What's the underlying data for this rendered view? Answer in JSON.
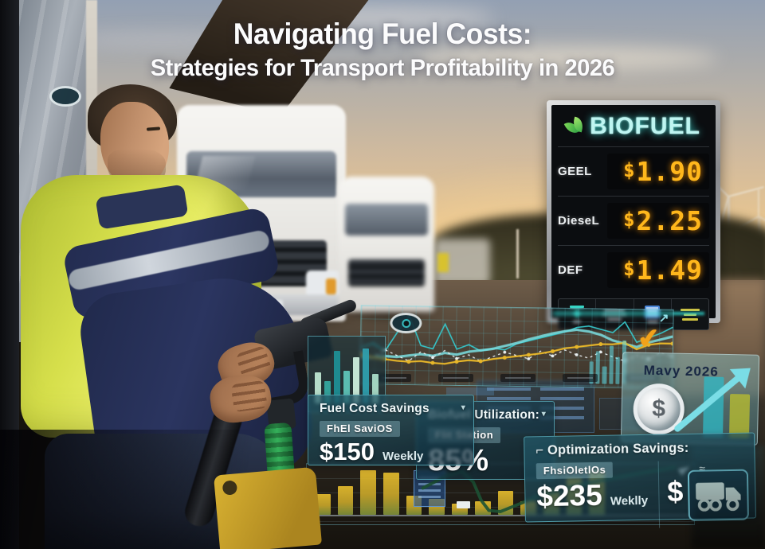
{
  "poster": {
    "title_line1": "Navigating Fuel Costs:",
    "title_line2": "Strategies for Transport Profitability in 2026"
  },
  "price_sign": {
    "brand": "BIOFUEL",
    "rows": [
      {
        "label": "GEEL",
        "price_currency": "$",
        "price": "1.90"
      },
      {
        "label": "DieseL",
        "price_currency": "$",
        "price": "2.25"
      },
      {
        "label": "DEF",
        "price_currency": "$",
        "price": "1.49"
      }
    ]
  },
  "dashboard": {
    "date_badge": "Mavy 2026",
    "coin_symbol": "$",
    "cards": [
      {
        "title": "Fuel Cost Savings",
        "chip": "FhEl SaviOS",
        "value": "$150",
        "unit": "Weekly"
      },
      {
        "title": "Biofuel Utilization:",
        "chip": "Flit Station",
        "value": "85%",
        "unit": ""
      },
      {
        "title": "Optimization Savings:",
        "chip": "FhsiOletlOs",
        "value": "$235",
        "unit": "Weklly",
        "symbol": "$"
      }
    ]
  },
  "icons": {
    "caret_down": "▾",
    "checkmark": "✔",
    "trend_arrow": "↗",
    "approx": "≈",
    "corner_mark": "⌐"
  },
  "palette": {
    "hud_border": "#55cfe0",
    "led_amber": "#ffb71c",
    "biofuel_cyan": "#bef5f1",
    "hivis_yellow": "#d6df4b",
    "navy": "#2b3560",
    "gold_bar": "#e7bd2e"
  },
  "chart_data": [
    {
      "name": "fuel-price-trend",
      "type": "line",
      "title": "",
      "xlabel": "",
      "ylabel": "",
      "x_labels": "illegible tick chips",
      "grid": true,
      "legend": false,
      "series": [
        {
          "name": "teal-spiky",
          "color": "#35c4c8",
          "width": 1.6,
          "values": [
            46,
            52,
            42,
            66,
            88,
            50,
            46,
            78,
            46,
            52,
            44,
            48,
            46,
            54,
            58,
            62,
            66,
            70,
            76,
            78,
            74,
            70,
            84,
            58,
            64,
            70,
            78
          ]
        },
        {
          "name": "teal-band",
          "color": "#7adfe2",
          "width": 3.2,
          "opacity": 0.85,
          "values": [
            34,
            34,
            36,
            35,
            37,
            39,
            37,
            41,
            39,
            43,
            45,
            47,
            51,
            55,
            60,
            64,
            68,
            71,
            73,
            71,
            67,
            60,
            56,
            52,
            58,
            62,
            66
          ]
        },
        {
          "name": "white-dotted",
          "color": "#e9eff1",
          "width": 1.3,
          "dashed": true,
          "markers": true,
          "marker_r": 1.9,
          "values": [
            40,
            34,
            44,
            37,
            30,
            42,
            35,
            44,
            34,
            39,
            31,
            37,
            43,
            39,
            35,
            45,
            39,
            47,
            41,
            37,
            45,
            39,
            34,
            41,
            37,
            45,
            41
          ]
        },
        {
          "name": "yellow",
          "color": "#e7b629",
          "width": 2.2,
          "markers": true,
          "marker_r": 2.5,
          "values": [
            37,
            34,
            32,
            30,
            29,
            30,
            28,
            27,
            30,
            32,
            31,
            34,
            36,
            38,
            40,
            42,
            45,
            49,
            51,
            53,
            55,
            55,
            57,
            49,
            55,
            57,
            57
          ]
        }
      ]
    },
    {
      "name": "mini-bars",
      "type": "bar",
      "values": [
        52,
        38,
        88,
        55,
        78,
        92,
        50
      ],
      "colors": [
        "#bfe7d2",
        "#35a8a0",
        "#1f8f96",
        "#5fc4b8",
        "#cdeedd",
        "#2f9fae",
        "#aadcc8"
      ]
    },
    {
      "name": "bottom-bars",
      "type": "bar",
      "values": [
        45,
        62,
        97,
        92,
        42,
        35,
        25,
        30,
        52,
        30,
        55,
        80,
        95
      ],
      "bar_class": "gold",
      "trend": [
        [
          30,
          40
        ],
        [
          36,
          20
        ],
        [
          40,
          12
        ],
        [
          43,
          30
        ],
        [
          45,
          60
        ],
        [
          47,
          77
        ],
        [
          50,
          79
        ],
        [
          55,
          66
        ],
        [
          60,
          52
        ],
        [
          66,
          42
        ],
        [
          74,
          30
        ],
        [
          84,
          18
        ],
        [
          95,
          6
        ]
      ],
      "trend_color": "#1d5234"
    },
    {
      "name": "cluster-bars",
      "type": "bar",
      "values": [
        42,
        62,
        34,
        72,
        52,
        84
      ],
      "colors": [
        "rgba(95,220,232,0.55)"
      ]
    },
    {
      "name": "may-bars",
      "type": "bar",
      "values": [
        86,
        62
      ],
      "colors": [
        "rgba(47,182,196,0.88)",
        "rgba(185,189,46,0.88)"
      ]
    }
  ]
}
